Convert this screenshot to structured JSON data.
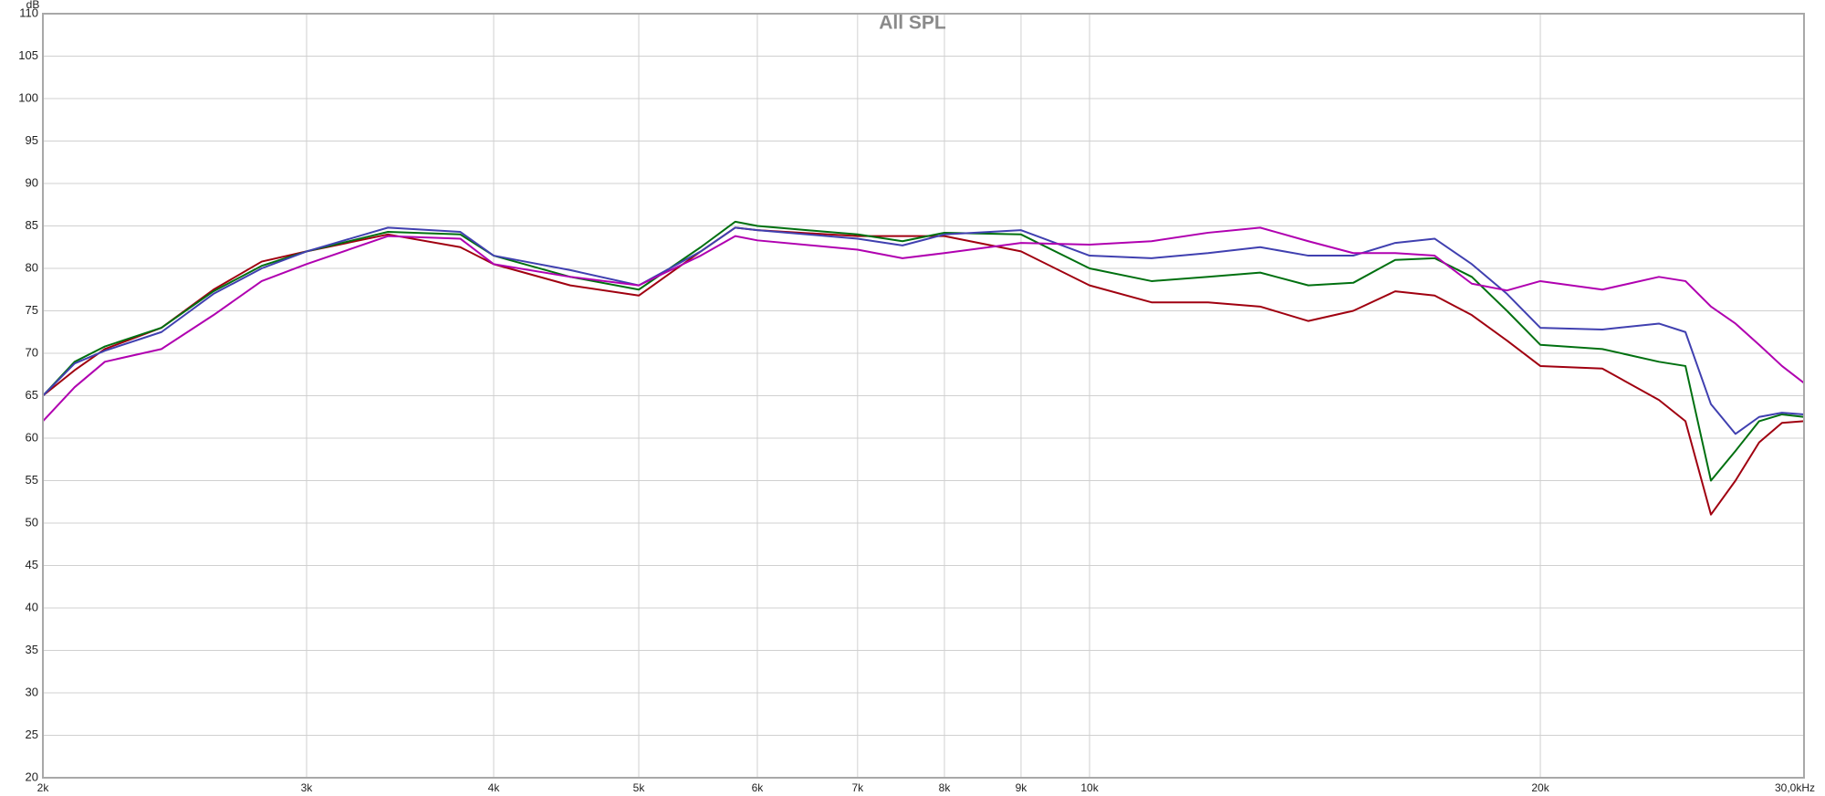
{
  "chart_data": {
    "type": "line",
    "title": "All SPL",
    "y_label": "dB",
    "x_scale": "log",
    "grid": true,
    "x": [
      2000,
      2100,
      2200,
      2400,
      2600,
      2800,
      3000,
      3400,
      3800,
      4000,
      4500,
      5000,
      5500,
      5800,
      6000,
      7000,
      7500,
      8000,
      9000,
      10000,
      11000,
      12000,
      13000,
      14000,
      15000,
      16000,
      17000,
      18000,
      19000,
      20000,
      22000,
      24000,
      25000,
      26000,
      27000,
      28000,
      29000,
      30000
    ],
    "series": [
      {
        "color": "#a00010",
        "values": [
          65,
          68,
          70.5,
          73,
          77.5,
          80.8,
          82,
          84,
          82.5,
          80.5,
          78,
          76.8,
          82,
          84.8,
          84.5,
          83.8,
          83.8,
          83.8,
          82,
          78,
          76,
          76,
          75.5,
          73.8,
          75,
          77.3,
          76.8,
          74.5,
          71.5,
          68.5,
          68.2,
          64.5,
          62,
          51,
          55,
          59.5,
          61.8,
          62
        ]
      },
      {
        "color": "#007010",
        "values": [
          65,
          69,
          70.8,
          73,
          77.3,
          80.3,
          82,
          84.3,
          84,
          81.5,
          79,
          77.5,
          82.5,
          85.5,
          85,
          84,
          83.2,
          84.2,
          84,
          80,
          78.5,
          79,
          79.5,
          78,
          78.3,
          81,
          81.2,
          79,
          75,
          71,
          70.5,
          69,
          68.5,
          55,
          58.5,
          62,
          62.8,
          62.5
        ]
      },
      {
        "color": "#4040b0",
        "values": [
          65,
          68.8,
          70.3,
          72.5,
          77,
          80,
          82,
          84.8,
          84.3,
          81.5,
          79.8,
          78,
          82,
          84.8,
          84.5,
          83.5,
          82.7,
          84,
          84.5,
          81.5,
          81.2,
          81.8,
          82.5,
          81.5,
          81.5,
          83,
          83.5,
          80.5,
          77,
          73,
          72.8,
          73.5,
          72.5,
          64,
          60.5,
          62.5,
          63,
          62.8
        ]
      },
      {
        "color": "#b000b0",
        "values": [
          62,
          66,
          69,
          70.5,
          74.5,
          78.5,
          80.5,
          83.8,
          83.5,
          80.5,
          79,
          78,
          81.5,
          83.8,
          83.3,
          82.2,
          81.2,
          81.8,
          83,
          82.8,
          83.2,
          84.2,
          84.8,
          83.2,
          81.8,
          81.8,
          81.5,
          78.2,
          77.4,
          78.5,
          77.5,
          79,
          78.5,
          75.5,
          73.5,
          71,
          68.5,
          66.5
        ]
      }
    ],
    "xlim": [
      2000,
      30000
    ],
    "xticks": [
      {
        "value": 2000,
        "label": "2k"
      },
      {
        "value": 3000,
        "label": "3k"
      },
      {
        "value": 4000,
        "label": "4k"
      },
      {
        "value": 5000,
        "label": "5k"
      },
      {
        "value": 6000,
        "label": "6k"
      },
      {
        "value": 7000,
        "label": "7k"
      },
      {
        "value": 8000,
        "label": "8k"
      },
      {
        "value": 9000,
        "label": "9k"
      },
      {
        "value": 10000,
        "label": "10k"
      },
      {
        "value": 20000,
        "label": "20k"
      },
      {
        "value": 30000,
        "label": "30,0kHz"
      }
    ],
    "ylim": [
      20,
      110
    ],
    "yticks": [
      20,
      25,
      30,
      35,
      40,
      45,
      50,
      55,
      60,
      65,
      70,
      75,
      80,
      85,
      90,
      95,
      100,
      105,
      110
    ]
  }
}
